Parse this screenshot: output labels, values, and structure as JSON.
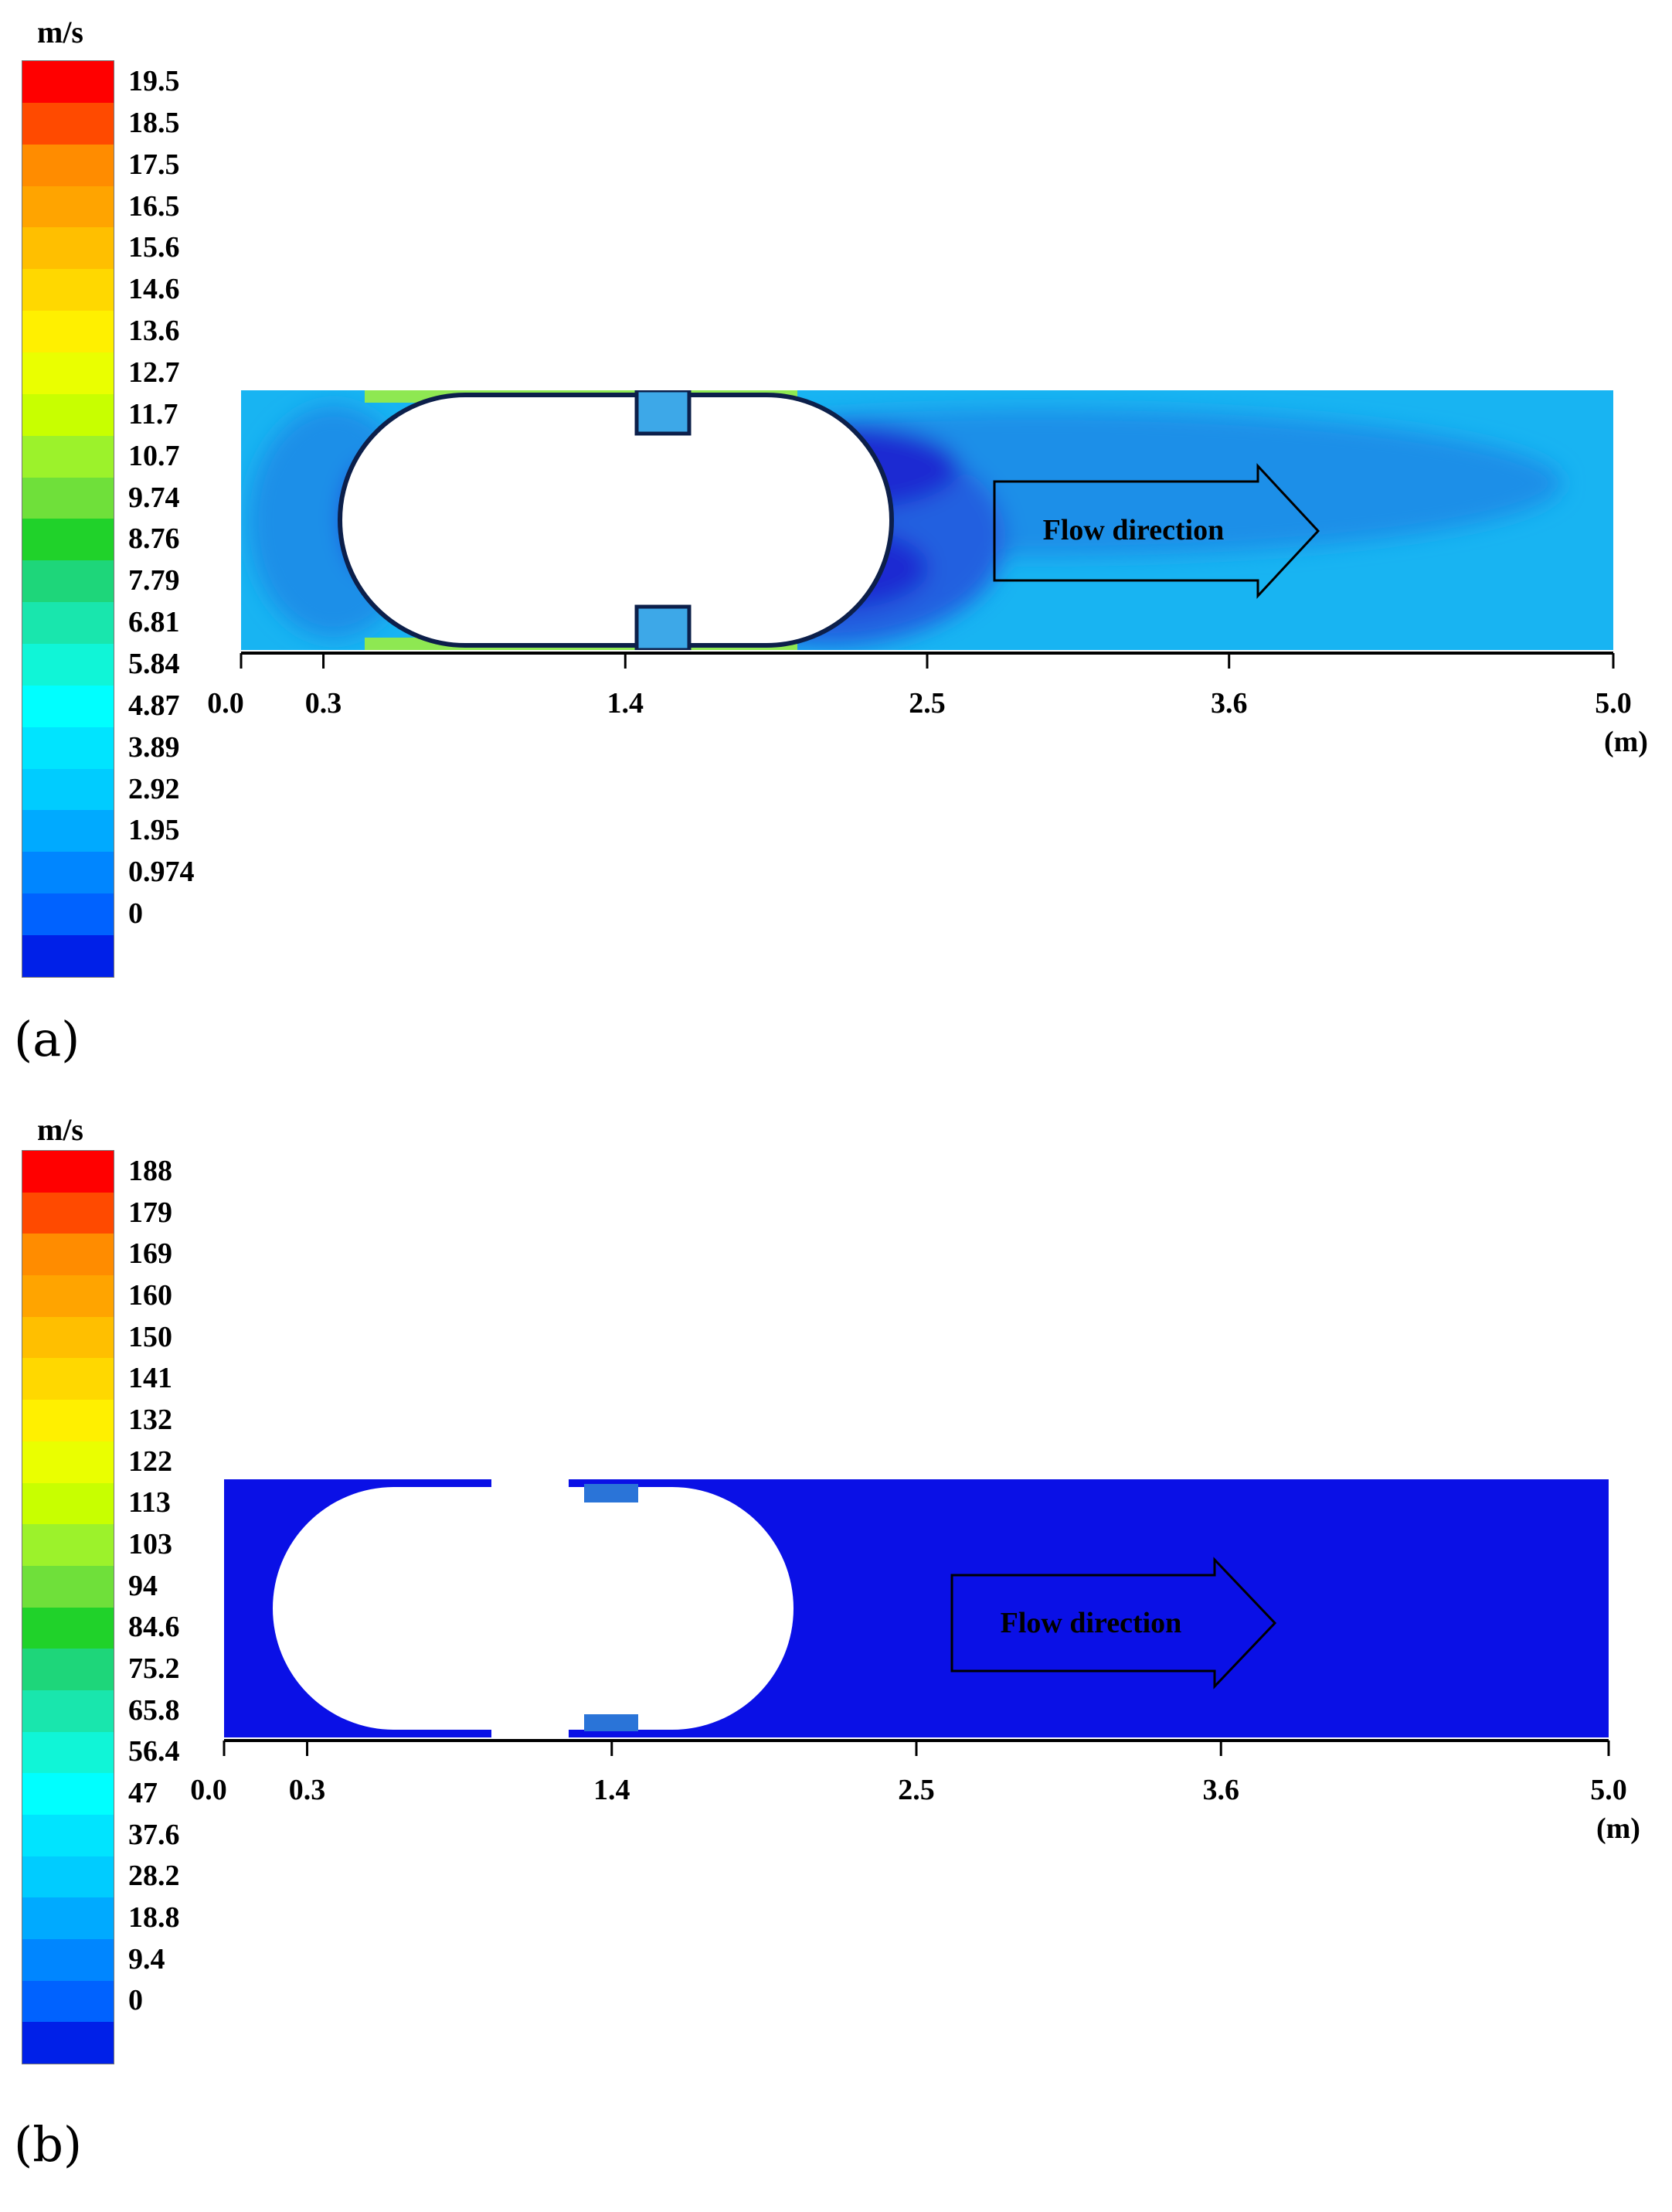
{
  "colors": {
    "legend": [
      "#ff0000",
      "#ff4a00",
      "#ff8c00",
      "#ffa400",
      "#ffbf00",
      "#ffd800",
      "#fff000",
      "#eaff00",
      "#c8ff00",
      "#9cf22b",
      "#6fe03a",
      "#20d22a",
      "#1ed67a",
      "#19e6ad",
      "#10f5d7",
      "#00ffff",
      "#00e4ff",
      "#00ccff",
      "#00aaff",
      "#0086ff",
      "#0062ff",
      "#0020e8"
    ],
    "field_a_base": "#18b4f2",
    "field_a_mid": "#1a8fe8",
    "field_a_low": "#2060e0",
    "field_a_dark": "#1a2ad2",
    "field_a_edge": "#8ee852",
    "field_b_base": "#0a10e6",
    "field_b_spot": "#2a74d8"
  },
  "panel_a": {
    "letter": "(a)",
    "unit": "m/s",
    "legend_labels": [
      "19.5",
      "18.5",
      "17.5",
      "16.5",
      "15.6",
      "14.6",
      "13.6",
      "12.7",
      "11.7",
      "10.7",
      "9.74",
      "8.76",
      "7.79",
      "6.81",
      "5.84",
      "4.87",
      "3.89",
      "2.92",
      "1.95",
      "0.974",
      "0"
    ],
    "x_ticks": [
      "0.0",
      "0.3",
      "1.4",
      "2.5",
      "3.6",
      "5.0"
    ],
    "x_unit": "(m)",
    "arrow_label": "Flow direction"
  },
  "panel_b": {
    "letter": "(b)",
    "unit": "m/s",
    "legend_labels": [
      "188",
      "179",
      "169",
      "160",
      "150",
      "141",
      "132",
      "122",
      "113",
      "103",
      "94",
      "84.6",
      "75.2",
      "65.8",
      "56.4",
      "47",
      "37.6",
      "28.2",
      "18.8",
      "9.4",
      "0"
    ],
    "x_ticks": [
      "0.0",
      "0.3",
      "1.4",
      "2.5",
      "3.6",
      "5.0"
    ],
    "x_unit": "(m)",
    "arrow_label": "Flow direction"
  }
}
